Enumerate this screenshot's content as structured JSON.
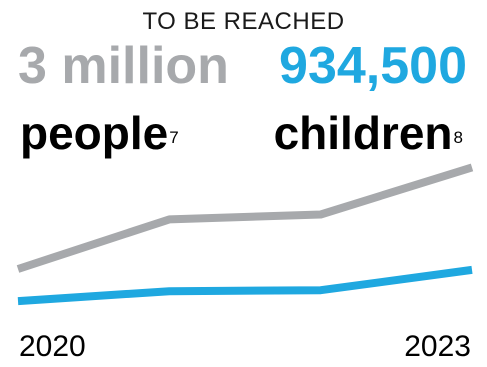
{
  "header": {
    "title": "TO BE REACHED"
  },
  "targets": {
    "people": {
      "value": "3 million",
      "label": "people",
      "footnote": "7"
    },
    "children": {
      "value": "934,500",
      "label": "children",
      "footnote": "8"
    }
  },
  "colors": {
    "people": "#a7a9ac",
    "children": "#1fa8e0"
  },
  "chart_data": {
    "type": "line",
    "x": [
      2020,
      2021,
      2022,
      2023
    ],
    "tick_labels": [
      "2020",
      "2023"
    ],
    "series": [
      {
        "key": "people",
        "values": [
          0.95,
          1.95,
          2.05,
          3.0
        ],
        "color": "#a7a9ac"
      },
      {
        "key": "children",
        "values": [
          0.3,
          0.5,
          0.52,
          0.93
        ],
        "color": "#1fa8e0"
      }
    ],
    "ylim": [
      0,
      3.15
    ],
    "grid": false,
    "legend": "none"
  }
}
